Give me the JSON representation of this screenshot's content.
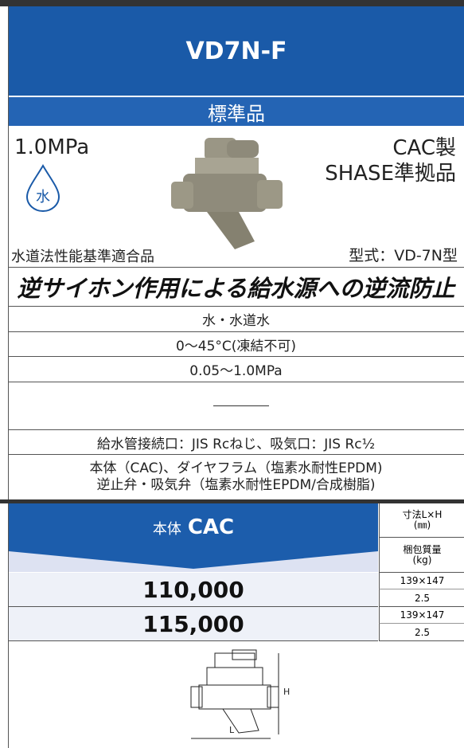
{
  "header": {
    "model": "VD7N-F",
    "grade": "標準品"
  },
  "product": {
    "pressure": "1.0MPa",
    "icon": "水",
    "material": "CAC製",
    "standard": "SHASE準拠品",
    "certification": "水道法性能基準適合品",
    "model_type": "型式：VD-7N型"
  },
  "tagline": "逆サイホン作用による給水源への逆流防止",
  "specs": {
    "fluid": "水・水道水",
    "temperature": "0〜45°C(凍結不可)",
    "pressure_range": "0.05〜1.0MPa",
    "connection": "給水管接続口：JIS Rcねじ、吸気口：JIS Rc½",
    "materials": [
      "本体（CAC)、ダイヤフラム（塩素水耐性EPDM)",
      "逆止弁・吸気弁（塩素水耐性EPDM/合成樹脂)"
    ]
  },
  "price_table": {
    "body_label": "本体",
    "body_material": "CAC",
    "dimension_header": [
      "寸法L×H",
      "(㎜)"
    ],
    "weight_header": [
      "梱包質量",
      "(kg)"
    ],
    "rows": [
      {
        "price": "110,000",
        "dimensions": "139×147",
        "weight": "2.5"
      },
      {
        "price": "115,000",
        "dimensions": "139×147",
        "weight": "2.5"
      }
    ]
  },
  "drawing": {
    "height_label": "H",
    "length_label": "L"
  }
}
